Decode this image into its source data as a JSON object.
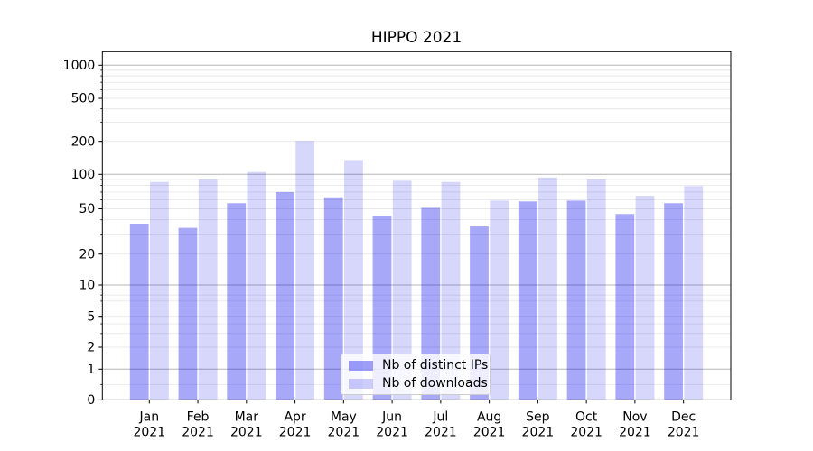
{
  "title": "HIPPO 2021",
  "legend": {
    "entries": [
      {
        "label": "Nb of distinct IPs"
      },
      {
        "label": "Nb of downloads"
      }
    ]
  },
  "chart_data": {
    "type": "bar",
    "title": "HIPPO 2021",
    "categories": [
      "Jan",
      "Feb",
      "Mar",
      "Apr",
      "May",
      "Jun",
      "Jul",
      "Aug",
      "Sep",
      "Oct",
      "Nov",
      "Dec"
    ],
    "category_year": "2021",
    "series": [
      {
        "name": "Nb of distinct IPs",
        "color": "#0000ee",
        "opacity": 0.34,
        "values": [
          37,
          34,
          56,
          70,
          63,
          43,
          51,
          35,
          58,
          59,
          45,
          56
        ]
      },
      {
        "name": "Nb of downloads",
        "color": "#0000ee",
        "opacity": 0.155,
        "values": [
          86,
          90,
          105,
          202,
          135,
          88,
          86,
          59,
          94,
          90,
          65,
          79
        ]
      }
    ],
    "xlabel": "",
    "ylabel": "",
    "y_axis": {
      "scale": "symlog",
      "tick_labels": [
        "0",
        "1",
        "2",
        "5",
        "10",
        "20",
        "50",
        "100",
        "200",
        "500",
        "1000"
      ],
      "tick_values": [
        0,
        1,
        2,
        5,
        10,
        20,
        50,
        100,
        200,
        500,
        1000
      ],
      "major_gridlines": [
        1,
        10,
        100,
        1000
      ],
      "minor_gridlines": [
        0.5,
        2,
        3,
        4,
        5,
        6,
        7,
        8,
        9,
        20,
        30,
        40,
        50,
        60,
        70,
        80,
        90,
        200,
        300,
        400,
        500,
        600,
        700,
        800,
        900
      ],
      "ylim": [
        0,
        1150
      ]
    },
    "legend_position": "inside-bottom-center",
    "grid": true,
    "style": {
      "major_grid_color": "#b5b5b5",
      "minor_grid_color": "#e8e8e8",
      "spine_color": "#000000",
      "text_color": "#000000",
      "background_color": "#ffffff"
    }
  }
}
